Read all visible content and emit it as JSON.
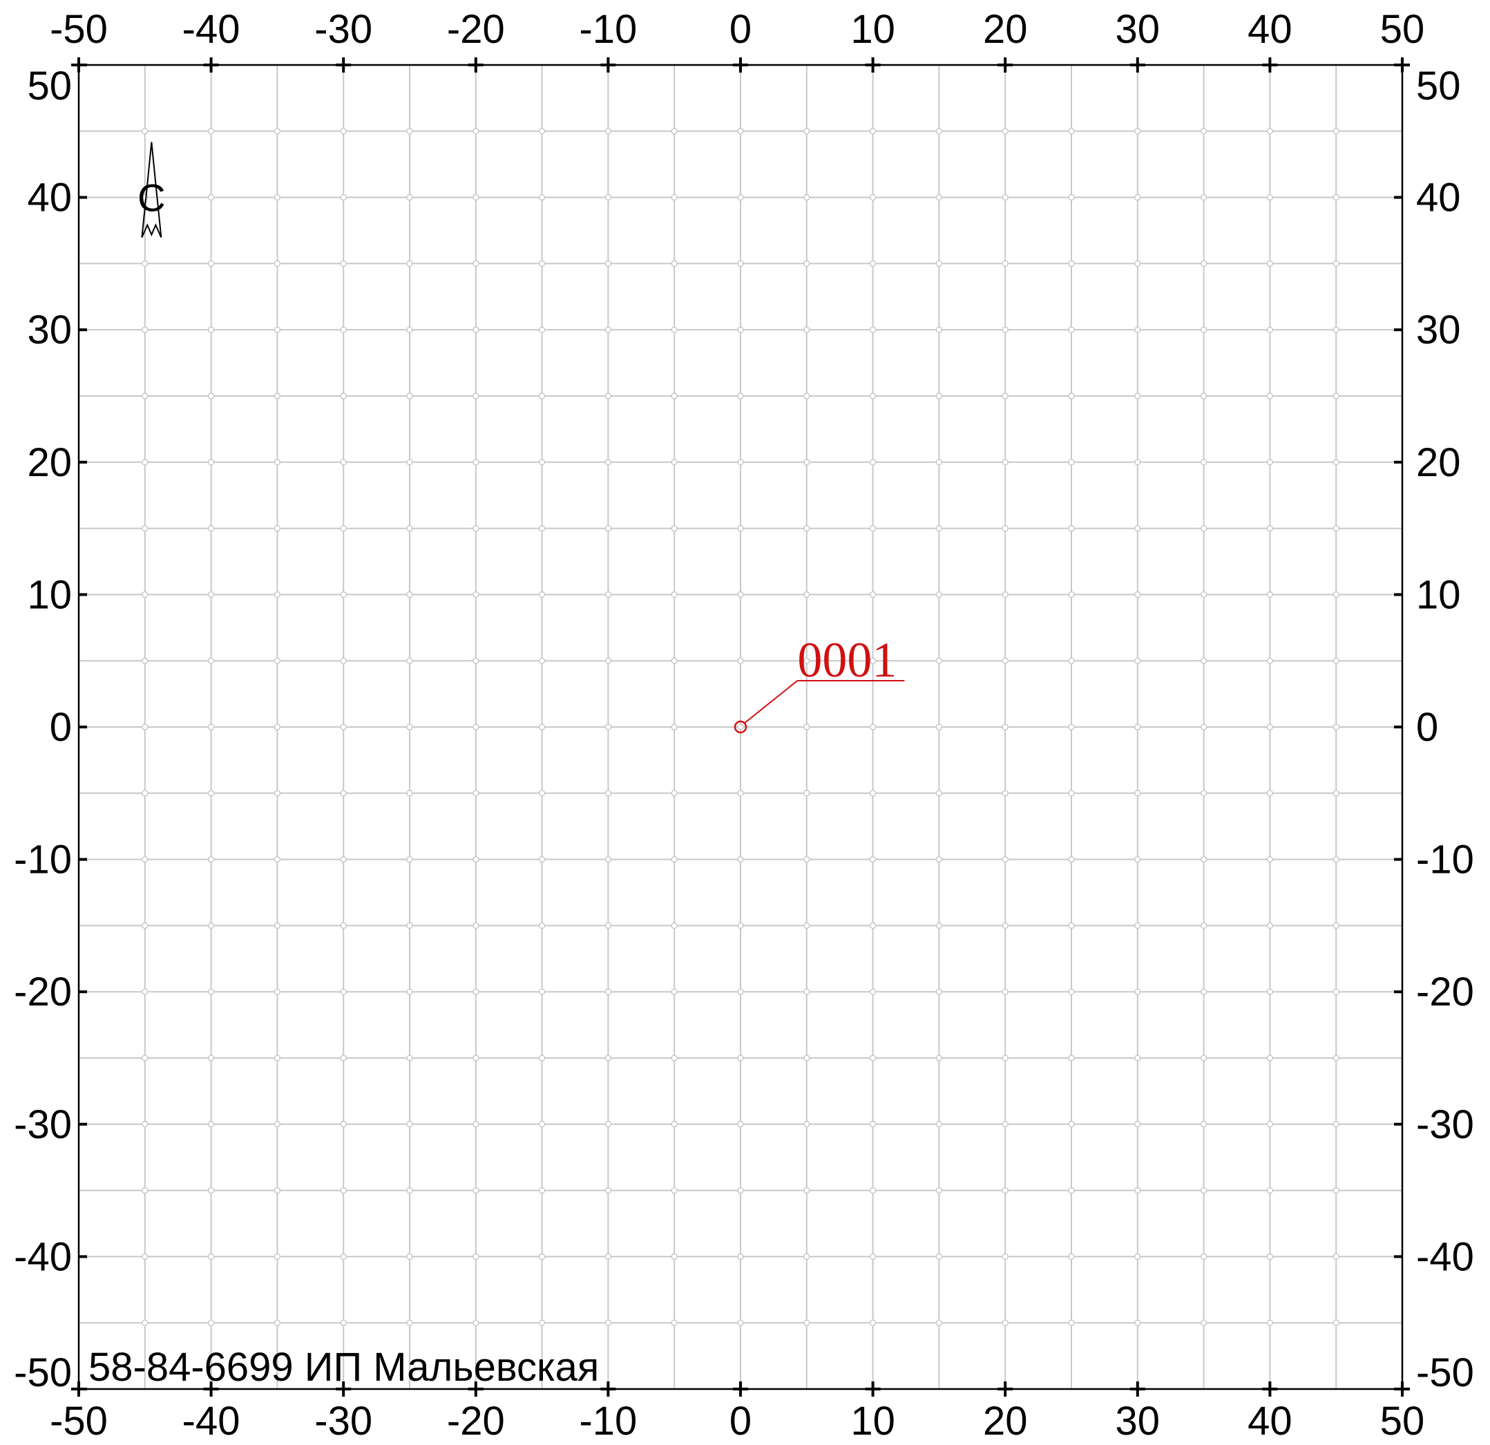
{
  "map": {
    "x_range": [
      -50,
      50
    ],
    "y_range": [
      -50,
      50
    ],
    "major_step": 10,
    "minor_step": 5,
    "tick_labels": [
      "-50",
      "-40",
      "-30",
      "-20",
      "-10",
      "0",
      "10",
      "20",
      "30",
      "40",
      "50"
    ],
    "colors": {
      "frame": "#000000",
      "grid": "#c8c8c8",
      "point": "#d01010",
      "background": "#ffffff"
    }
  },
  "north_arrow": {
    "letter": "С",
    "icon": "north-arrow-icon",
    "x": -44.5,
    "y": 40
  },
  "points": [
    {
      "label": "0001",
      "x": 0,
      "y": 0,
      "label_x": 4.3,
      "label_y": 3.5
    }
  ],
  "footer": {
    "text": "58-84-6699 ИП Мальевская"
  }
}
